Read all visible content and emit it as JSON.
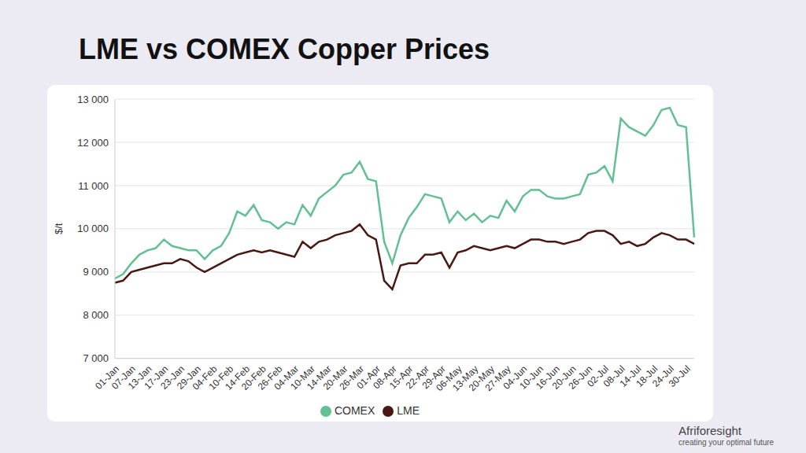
{
  "chart_data": {
    "type": "line",
    "title": "LME vs COMEX Copper Prices",
    "y_label": "$/t",
    "categories": [
      "01-Jan",
      null,
      "07-Jan",
      null,
      "13-Jan",
      null,
      "17-Jan",
      null,
      "23-Jan",
      null,
      "29-Jan",
      null,
      "04-Feb",
      null,
      "10-Feb",
      null,
      "14-Feb",
      null,
      "20-Feb",
      null,
      "26-Feb",
      null,
      "04-Mar",
      null,
      "10-Mar",
      null,
      "14-Mar",
      null,
      "20-Mar",
      null,
      "26-Mar",
      null,
      "01-Apr",
      null,
      "08-Apr",
      null,
      "15-Apr",
      null,
      "22-Apr",
      null,
      "29-Apr",
      null,
      "06-May",
      null,
      "13-May",
      null,
      "20-May",
      null,
      "27-May",
      null,
      "04-Jun",
      null,
      "10-Jun",
      null,
      "16-Jun",
      null,
      "20-Jun",
      null,
      "26-Jun",
      null,
      "02-Jul",
      null,
      "08-Jul",
      null,
      "14-Jul",
      null,
      "18-Jul",
      null,
      "24-Jul",
      null,
      "30-Jul",
      null
    ],
    "series": [
      {
        "name": "COMEX",
        "color": "#62c092",
        "values": [
          8850,
          8950,
          9200,
          9400,
          9500,
          9550,
          9750,
          9600,
          9550,
          9500,
          9500,
          9300,
          9500,
          9600,
          9900,
          10400,
          10300,
          10550,
          10200,
          10150,
          10000,
          10150,
          10100,
          10550,
          10300,
          10700,
          10850,
          11000,
          11250,
          11300,
          11550,
          11150,
          11100,
          9700,
          9200,
          9850,
          10250,
          10500,
          10800,
          10750,
          10700,
          10150,
          10400,
          10200,
          10350,
          10150,
          10300,
          10250,
          10650,
          10400,
          10750,
          10900,
          10900,
          10750,
          10700,
          10700,
          10750,
          10800,
          11250,
          11300,
          11450,
          11100,
          12550,
          12350,
          12250,
          12150,
          12400,
          12750,
          12800,
          12400,
          12350,
          9800
        ]
      },
      {
        "name": "LME",
        "color": "#4a1812",
        "values": [
          8750,
          8800,
          9000,
          9050,
          9100,
          9150,
          9200,
          9200,
          9300,
          9250,
          9100,
          9000,
          9100,
          9200,
          9300,
          9400,
          9450,
          9500,
          9450,
          9500,
          9450,
          9400,
          9350,
          9700,
          9550,
          9700,
          9750,
          9850,
          9900,
          9950,
          10100,
          9850,
          9750,
          8800,
          8600,
          9150,
          9200,
          9200,
          9400,
          9400,
          9450,
          9100,
          9450,
          9500,
          9600,
          9550,
          9500,
          9550,
          9600,
          9550,
          9650,
          9750,
          9750,
          9700,
          9700,
          9650,
          9700,
          9750,
          9900,
          9950,
          9950,
          9850,
          9650,
          9700,
          9600,
          9650,
          9800,
          9900,
          9850,
          9750,
          9750,
          9650
        ]
      }
    ],
    "ylim": [
      7000,
      13000
    ],
    "yticks": [
      {
        "value": 7000,
        "label": "7 000"
      },
      {
        "value": 8000,
        "label": "8 000"
      },
      {
        "value": 9000,
        "label": "9 000"
      },
      {
        "value": 10000,
        "label": "10 000"
      },
      {
        "value": 11000,
        "label": "11 000"
      },
      {
        "value": 12000,
        "label": "12 000"
      },
      {
        "value": 13000,
        "label": "13 000"
      }
    ],
    "grid": true,
    "legend": "bottom",
    "annotations": [
      "Afriforesight",
      "creating your optimal future"
    ]
  }
}
